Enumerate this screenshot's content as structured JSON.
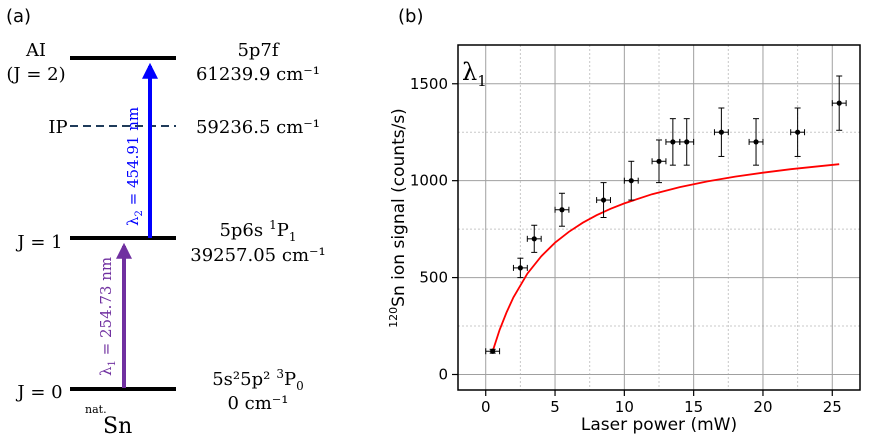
{
  "panel_a": {
    "panel_label": "(a)",
    "levels": [
      {
        "left_label": "AI",
        "left_sub": "(J = 2)",
        "config": "5p7f",
        "energy": "61239.9 cm⁻¹"
      },
      {
        "left_label": "IP",
        "energy": "59236.5 cm⁻¹",
        "style": "dashed"
      },
      {
        "left_label": "J = 1",
        "config": "5p6s",
        "term_sup": "1",
        "term_letter": "P",
        "term_sub": "1",
        "energy": "39257.05 cm⁻¹"
      },
      {
        "left_label": "J = 0",
        "config": "5s²5p²",
        "term_sup": "3",
        "term_letter": "P",
        "term_sub": "0",
        "energy": "0 cm⁻¹"
      }
    ],
    "transitions": [
      {
        "label": "λ",
        "sub": "1",
        "text": " = 254.73 nm",
        "color": "#7030a0"
      },
      {
        "label": "λ",
        "sub": "2",
        "text": " = 454.91 nm",
        "color": "#0000ff"
      }
    ],
    "element": {
      "sup": "nat.",
      "symbol": "Sn"
    }
  },
  "chart_data": {
    "type": "scatter",
    "panel_label": "(b)",
    "annotation": {
      "symbol": "λ",
      "sub": "1"
    },
    "xlabel": "Laser power (mW)",
    "ylabel_sup": "120",
    "ylabel": "Sn ion signal (counts/s)",
    "xlim": [
      -2,
      27
    ],
    "ylim": [
      -80,
      1700
    ],
    "xticks": [
      0,
      5,
      10,
      15,
      20,
      25
    ],
    "yticks": [
      0,
      500,
      1000,
      1500
    ],
    "grid": true,
    "series": [
      {
        "marker": "circle",
        "color": "#000000",
        "x": [
          0.5,
          2.5,
          3.5,
          5.5,
          8.5,
          10.5,
          12.5,
          13.5,
          14.5,
          17,
          19.5,
          22.5,
          25.5
        ],
        "y": [
          120,
          550,
          700,
          850,
          900,
          1000,
          1100,
          1200,
          1200,
          1250,
          1200,
          1250,
          1400
        ],
        "x_err": [
          0.5,
          0.5,
          0.5,
          0.5,
          0.5,
          0.5,
          0.5,
          0.5,
          0.5,
          0.5,
          0.5,
          0.5,
          0.5
        ],
        "y_err": [
          10,
          50,
          70,
          85,
          90,
          100,
          110,
          120,
          120,
          125,
          120,
          125,
          140
        ]
      }
    ],
    "fit": {
      "color": "#ff0000",
      "x": [
        0.5,
        1,
        1.5,
        2,
        3,
        4,
        5,
        6,
        7,
        8,
        9,
        10,
        12,
        14,
        16,
        18,
        20,
        22,
        24,
        25.5
      ],
      "y": [
        120,
        230,
        320,
        398,
        520,
        610,
        680,
        736,
        783,
        822,
        855,
        883,
        930,
        967,
        996,
        1021,
        1041,
        1059,
        1074,
        1085
      ]
    }
  }
}
